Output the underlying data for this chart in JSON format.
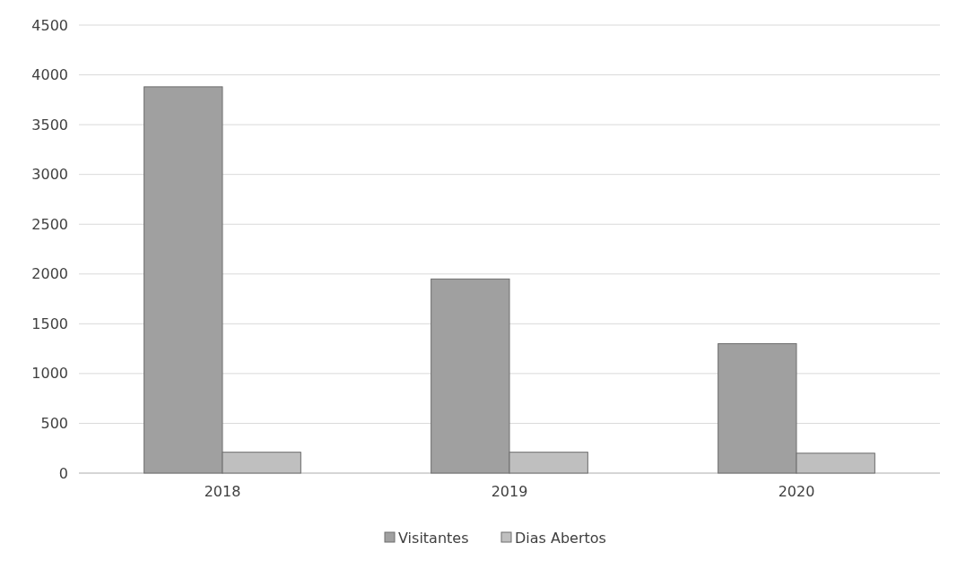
{
  "chart_data": {
    "type": "bar",
    "categories": [
      "2018",
      "2019",
      "2020"
    ],
    "series": [
      {
        "name": "Visitantes",
        "color": "#a0a0a0",
        "values": [
          3880,
          1950,
          1300
        ]
      },
      {
        "name": "Dias Abertos",
        "color": "#bfbfbf",
        "values": [
          210,
          210,
          200
        ]
      }
    ],
    "ylim": [
      0,
      4500
    ],
    "yticks": [
      0,
      500,
      1000,
      1500,
      2000,
      2500,
      3000,
      3500,
      4000,
      4500
    ],
    "grid": "y",
    "legend": "bottom"
  }
}
